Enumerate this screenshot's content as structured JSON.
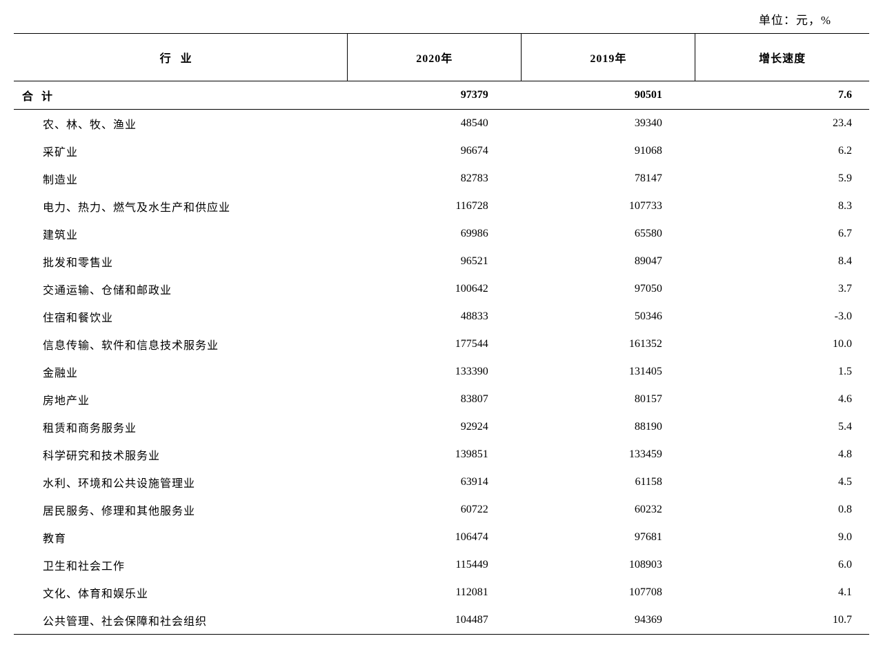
{
  "table": {
    "type": "table",
    "unit_label": "单位：元，%",
    "columns": {
      "industry": "行业",
      "year_2020": "2020年",
      "year_2019": "2019年",
      "growth_rate": "增长速度"
    },
    "total_row": {
      "label": "合计",
      "year_2020": "97379",
      "year_2019": "90501",
      "growth": "7.6"
    },
    "rows": [
      {
        "industry": "农、林、牧、渔业",
        "year_2020": "48540",
        "year_2019": "39340",
        "growth": "23.4"
      },
      {
        "industry": "采矿业",
        "year_2020": "96674",
        "year_2019": "91068",
        "growth": "6.2"
      },
      {
        "industry": "制造业",
        "year_2020": "82783",
        "year_2019": "78147",
        "growth": "5.9"
      },
      {
        "industry": "电力、热力、燃气及水生产和供应业",
        "year_2020": "116728",
        "year_2019": "107733",
        "growth": "8.3"
      },
      {
        "industry": "建筑业",
        "year_2020": "69986",
        "year_2019": "65580",
        "growth": "6.7"
      },
      {
        "industry": "批发和零售业",
        "year_2020": "96521",
        "year_2019": "89047",
        "growth": "8.4"
      },
      {
        "industry": "交通运输、仓储和邮政业",
        "year_2020": "100642",
        "year_2019": "97050",
        "growth": "3.7"
      },
      {
        "industry": "住宿和餐饮业",
        "year_2020": "48833",
        "year_2019": "50346",
        "growth": "-3.0"
      },
      {
        "industry": "信息传输、软件和信息技术服务业",
        "year_2020": "177544",
        "year_2019": "161352",
        "growth": "10.0"
      },
      {
        "industry": "金融业",
        "year_2020": "133390",
        "year_2019": "131405",
        "growth": "1.5"
      },
      {
        "industry": "房地产业",
        "year_2020": "83807",
        "year_2019": "80157",
        "growth": "4.6"
      },
      {
        "industry": "租赁和商务服务业",
        "year_2020": "92924",
        "year_2019": "88190",
        "growth": "5.4"
      },
      {
        "industry": "科学研究和技术服务业",
        "year_2020": "139851",
        "year_2019": "133459",
        "growth": "4.8"
      },
      {
        "industry": "水利、环境和公共设施管理业",
        "year_2020": "63914",
        "year_2019": "61158",
        "growth": "4.5"
      },
      {
        "industry": "居民服务、修理和其他服务业",
        "year_2020": "60722",
        "year_2019": "60232",
        "growth": "0.8"
      },
      {
        "industry": "教育",
        "year_2020": "106474",
        "year_2019": "97681",
        "growth": "9.0"
      },
      {
        "industry": "卫生和社会工作",
        "year_2020": "115449",
        "year_2019": "108903",
        "growth": "6.0"
      },
      {
        "industry": "文化、体育和娱乐业",
        "year_2020": "112081",
        "year_2019": "107708",
        "growth": "4.1"
      },
      {
        "industry": "公共管理、社会保障和社会组织",
        "year_2020": "104487",
        "year_2019": "94369",
        "growth": "10.7"
      }
    ],
    "styling": {
      "font_family": "SimSun",
      "text_color": "#000000",
      "background_color": "#ffffff",
      "border_color": "#000000",
      "header_font_weight": "bold",
      "total_font_weight": "bold",
      "body_font_size": 16,
      "row_padding_vertical": 8,
      "header_padding_vertical": 22,
      "column_widths_pct": [
        39,
        20.33,
        20.33,
        20.33
      ],
      "number_alignment": "right",
      "industry_alignment": "left",
      "top_border_width": 1.5,
      "inner_border_width": 1,
      "bottom_border_width": 1.5
    }
  }
}
